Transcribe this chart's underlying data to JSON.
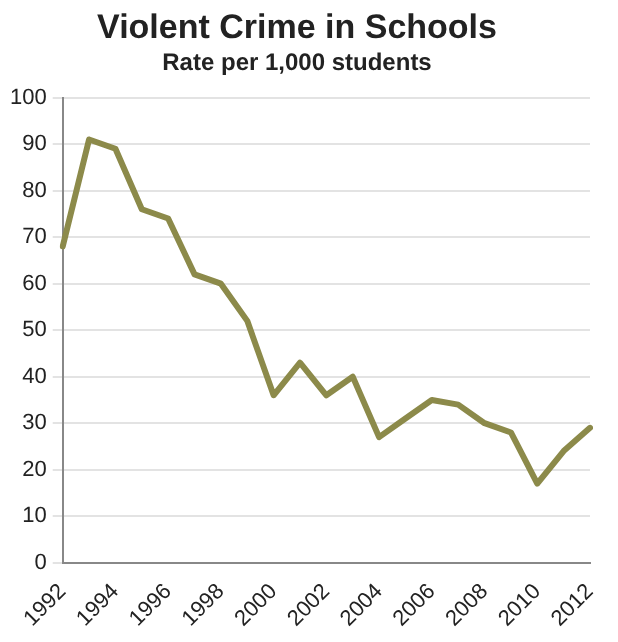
{
  "chart_data": {
    "type": "line",
    "title": "Violent Crime in Schools",
    "subtitle": "Rate per 1,000 students",
    "categories": [
      "1992",
      null,
      "1994",
      null,
      "1996",
      null,
      "1998",
      null,
      "2000",
      null,
      "2002",
      null,
      "2004",
      null,
      "2006",
      null,
      "2008",
      null,
      "2010",
      null,
      "2012"
    ],
    "series": [
      {
        "color": "#8c8a4a",
        "values": [
          68,
          91,
          89,
          76,
          74,
          62,
          60,
          52,
          36,
          43,
          36,
          40,
          27,
          31,
          35,
          34,
          30,
          28,
          17,
          24,
          29
        ]
      }
    ],
    "ylim": [
      0,
      100
    ],
    "yticks": [
      0,
      10,
      20,
      30,
      40,
      50,
      60,
      70,
      80,
      90,
      100
    ],
    "grid": "y",
    "legend": false,
    "marker": "none",
    "line_style": "solid"
  }
}
